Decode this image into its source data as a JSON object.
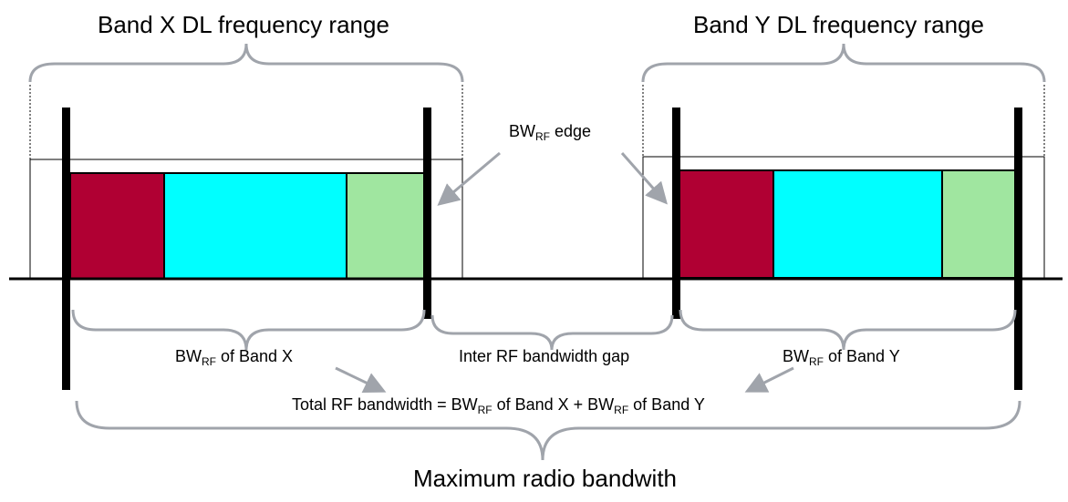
{
  "labels": {
    "band_x_range": "Band X DL frequency range",
    "band_y_range": "Band Y DL frequency range",
    "bw_rf_edge_base": "BW",
    "bw_rf_edge_sub": "RF",
    "bw_rf_edge_rest": " edge",
    "bw_rf_band_x_base": "BW",
    "bw_rf_band_x_sub": "RF",
    "bw_rf_band_x_rest": " of Band X",
    "inter_gap": "Inter RF bandwidth gap",
    "bw_rf_band_y_base": "BW",
    "bw_rf_band_y_sub": "RF",
    "bw_rf_band_y_rest": " of Band Y",
    "total_pre": "Total RF bandwidth = BW",
    "total_sub1": "RF",
    "total_mid": " of Band X + BW",
    "total_sub2": "RF",
    "total_post": " of Band Y",
    "max_radio": "Maximum radio bandwith"
  },
  "colors": {
    "carrier_1": "#b00033",
    "carrier_2": "#00ffff",
    "carrier_3": "#a0e6a0",
    "arrow": "#a0a4ab",
    "brace": "#a0a4ab"
  }
}
